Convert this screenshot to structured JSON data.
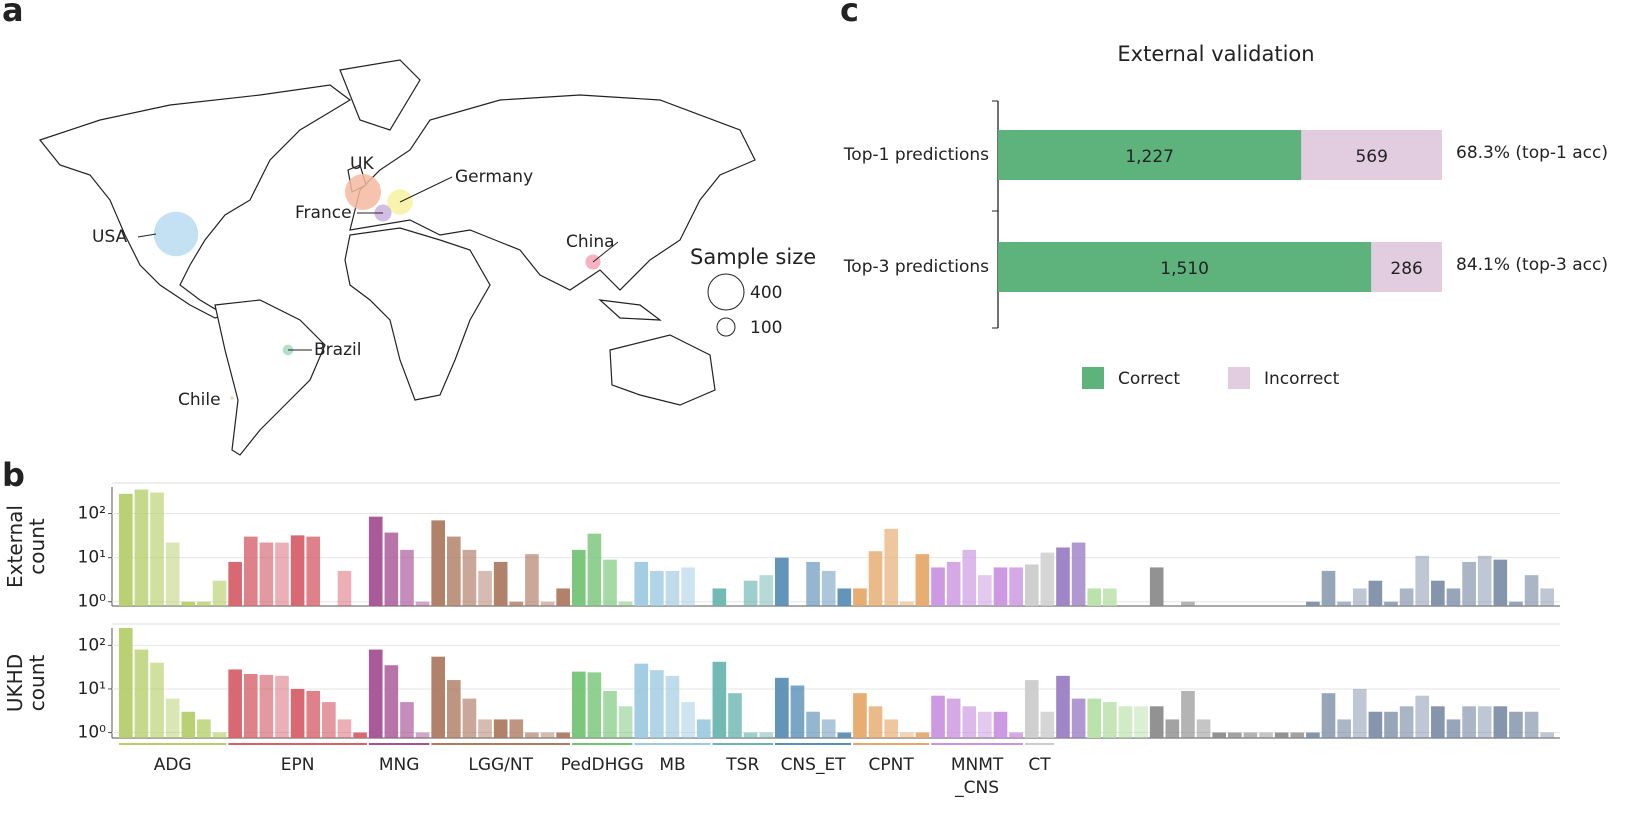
{
  "chart_data": [
    {
      "type": "bubble_map",
      "label": "a",
      "countries": [
        "USA",
        "UK",
        "Germany",
        "France",
        "China",
        "Brazil",
        "Chile"
      ],
      "values": [
        610,
        400,
        200,
        90,
        70,
        35,
        3
      ],
      "colors": [
        "#b9dcf0",
        "#f5b9a0",
        "#f7f2a0",
        "#c9b3dd",
        "#f4a6b4",
        "#a9d9c0",
        "#f2c3a0"
      ],
      "size_legend": {
        "title": "Sample size",
        "values": [
          400,
          100
        ]
      }
    },
    {
      "type": "bar",
      "label": "b",
      "y_label": [
        "External",
        "count"
      ],
      "log_scale": true,
      "grid": true,
      "ylim": [
        0.8,
        400
      ],
      "yticks": [
        {
          "value": 1,
          "label": "10⁰"
        },
        {
          "value": 10,
          "label": "10¹"
        },
        {
          "value": 100,
          "label": "10²"
        }
      ],
      "values": [
        280,
        350,
        300,
        22,
        1,
        1,
        3,
        8,
        30,
        22,
        22,
        32,
        30,
        null,
        5,
        null,
        85,
        37,
        15,
        1,
        70,
        30,
        15,
        5,
        8,
        1,
        12,
        1,
        2,
        15,
        35,
        9,
        1,
        8,
        5,
        5,
        6,
        null,
        2,
        null,
        3,
        4,
        10,
        null,
        8,
        5,
        2,
        2,
        14,
        45,
        1,
        12,
        6,
        8,
        15,
        4,
        6,
        6,
        7,
        13,
        17,
        22,
        2,
        2,
        null,
        null,
        6,
        null,
        1,
        null,
        null,
        null,
        null,
        null,
        null,
        null,
        1,
        5,
        1,
        2,
        3,
        1,
        2,
        11,
        3,
        2,
        8,
        11,
        9,
        1,
        4,
        2
      ]
    },
    {
      "type": "bar",
      "y_label": [
        "UKHD",
        "count"
      ],
      "log_scale": true,
      "grid": true,
      "ylim": [
        0.75,
        250
      ],
      "yticks": [
        {
          "value": 1,
          "label": "10⁰"
        },
        {
          "value": 10,
          "label": "10¹"
        },
        {
          "value": 100,
          "label": "10²"
        }
      ],
      "values": [
        250,
        80,
        40,
        6,
        3,
        2,
        1,
        28,
        22,
        21,
        20,
        10,
        9,
        5,
        2,
        1,
        80,
        35,
        5,
        1,
        55,
        16,
        6,
        2,
        2,
        2,
        1,
        1,
        1,
        25,
        24,
        9,
        4,
        38,
        27,
        20,
        5,
        2,
        42,
        8,
        1,
        1,
        18,
        12,
        3,
        2,
        1,
        8,
        4,
        2,
        1,
        1,
        7,
        6,
        4,
        3,
        3,
        1,
        16,
        3,
        20,
        6,
        6,
        5,
        4,
        4,
        4,
        2,
        9,
        2,
        1,
        1,
        1,
        1,
        1,
        1,
        1,
        8,
        2,
        10,
        3,
        3,
        4,
        7,
        4,
        2,
        4,
        4,
        4,
        3,
        3,
        1
      ],
      "groups": [
        {
          "label": [
            "ADG"
          ],
          "size": 7,
          "color": "#b5cf6b"
        },
        {
          "label": [
            "EPN"
          ],
          "size": 9,
          "color": "#d6616b"
        },
        {
          "label": [
            "MNG"
          ],
          "size": 4,
          "color": "#a55194"
        },
        {
          "label": [
            "LGG/NT"
          ],
          "size": 9,
          "color": "#ad7a62"
        },
        {
          "label": [
            "PedDHGG"
          ],
          "size": 4,
          "color": "#74c476"
        },
        {
          "label": [
            "MB"
          ],
          "size": 5,
          "color": "#9ecae1"
        },
        {
          "label": [
            "TSR"
          ],
          "size": 4,
          "color": "#6bb5b0"
        },
        {
          "label": [
            "CNS_ET"
          ],
          "size": 5,
          "color": "#5a8fb5"
        },
        {
          "label": [
            "CPNT"
          ],
          "size": 5,
          "color": "#e6a96b"
        },
        {
          "label": [
            "MNMT",
            "_CNS"
          ],
          "size": 6,
          "color": "#c994e0"
        },
        {
          "label": [
            "CT"
          ],
          "size": 2,
          "color": "#cccccc"
        },
        {
          "label": null,
          "size": 2,
          "color": "#9c7fc4"
        },
        {
          "label": null,
          "size": 4,
          "color": "#b8e0a8"
        },
        {
          "label": null,
          "size": 10,
          "color": "#8c8c8c"
        },
        {
          "label": null,
          "size": 16,
          "color": "#7d8fa8"
        }
      ]
    },
    {
      "type": "stacked_barh",
      "label": "c",
      "title": "External validation",
      "categories": [
        "Top-1 predictions",
        "Top-3 predictions"
      ],
      "xlim": [
        0,
        1796
      ],
      "series": [
        {
          "name": "Correct",
          "color": "#5eb27c",
          "values": [
            1227,
            1510
          ],
          "value_labels": [
            "1,227",
            "1,510"
          ]
        },
        {
          "name": "Incorrect",
          "color": "#e2cce0",
          "values": [
            569,
            286
          ]
        }
      ],
      "annotations": [
        "68.3% (top-1 acc)",
        "84.1% (top-3 acc)"
      ]
    }
  ]
}
